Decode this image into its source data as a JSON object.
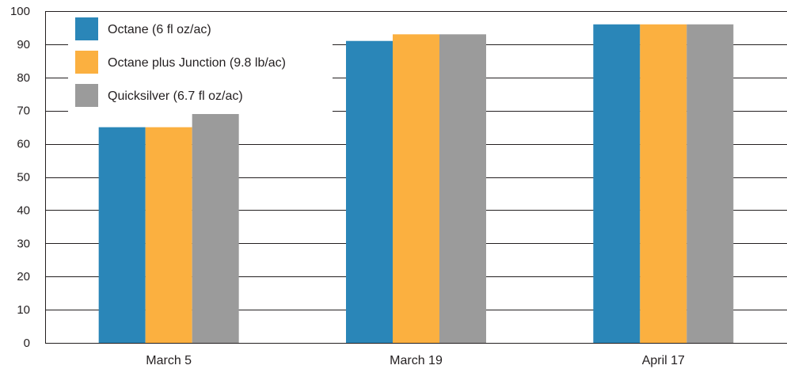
{
  "chart_data": {
    "type": "bar",
    "title": "",
    "xlabel": "",
    "ylabel": "",
    "categories": [
      "March 5",
      "March 19",
      "April 17"
    ],
    "series": [
      {
        "name": "Octane (6 fl oz/ac)",
        "color": "#2a86b8",
        "values": [
          65,
          91,
          96
        ]
      },
      {
        "name": "Octane plus Junction (9.8 lb/ac)",
        "color": "#fbb040",
        "values": [
          65,
          93,
          96
        ]
      },
      {
        "name": "Quicksilver (6.7 fl oz/ac)",
        "color": "#9b9b9b",
        "values": [
          70,
          93,
          96
        ]
      }
    ],
    "ylim": [
      0,
      100
    ],
    "yticks": [
      0,
      10,
      20,
      30,
      40,
      50,
      60,
      70,
      80,
      90,
      100
    ],
    "grid": true,
    "legend": "top-left"
  }
}
